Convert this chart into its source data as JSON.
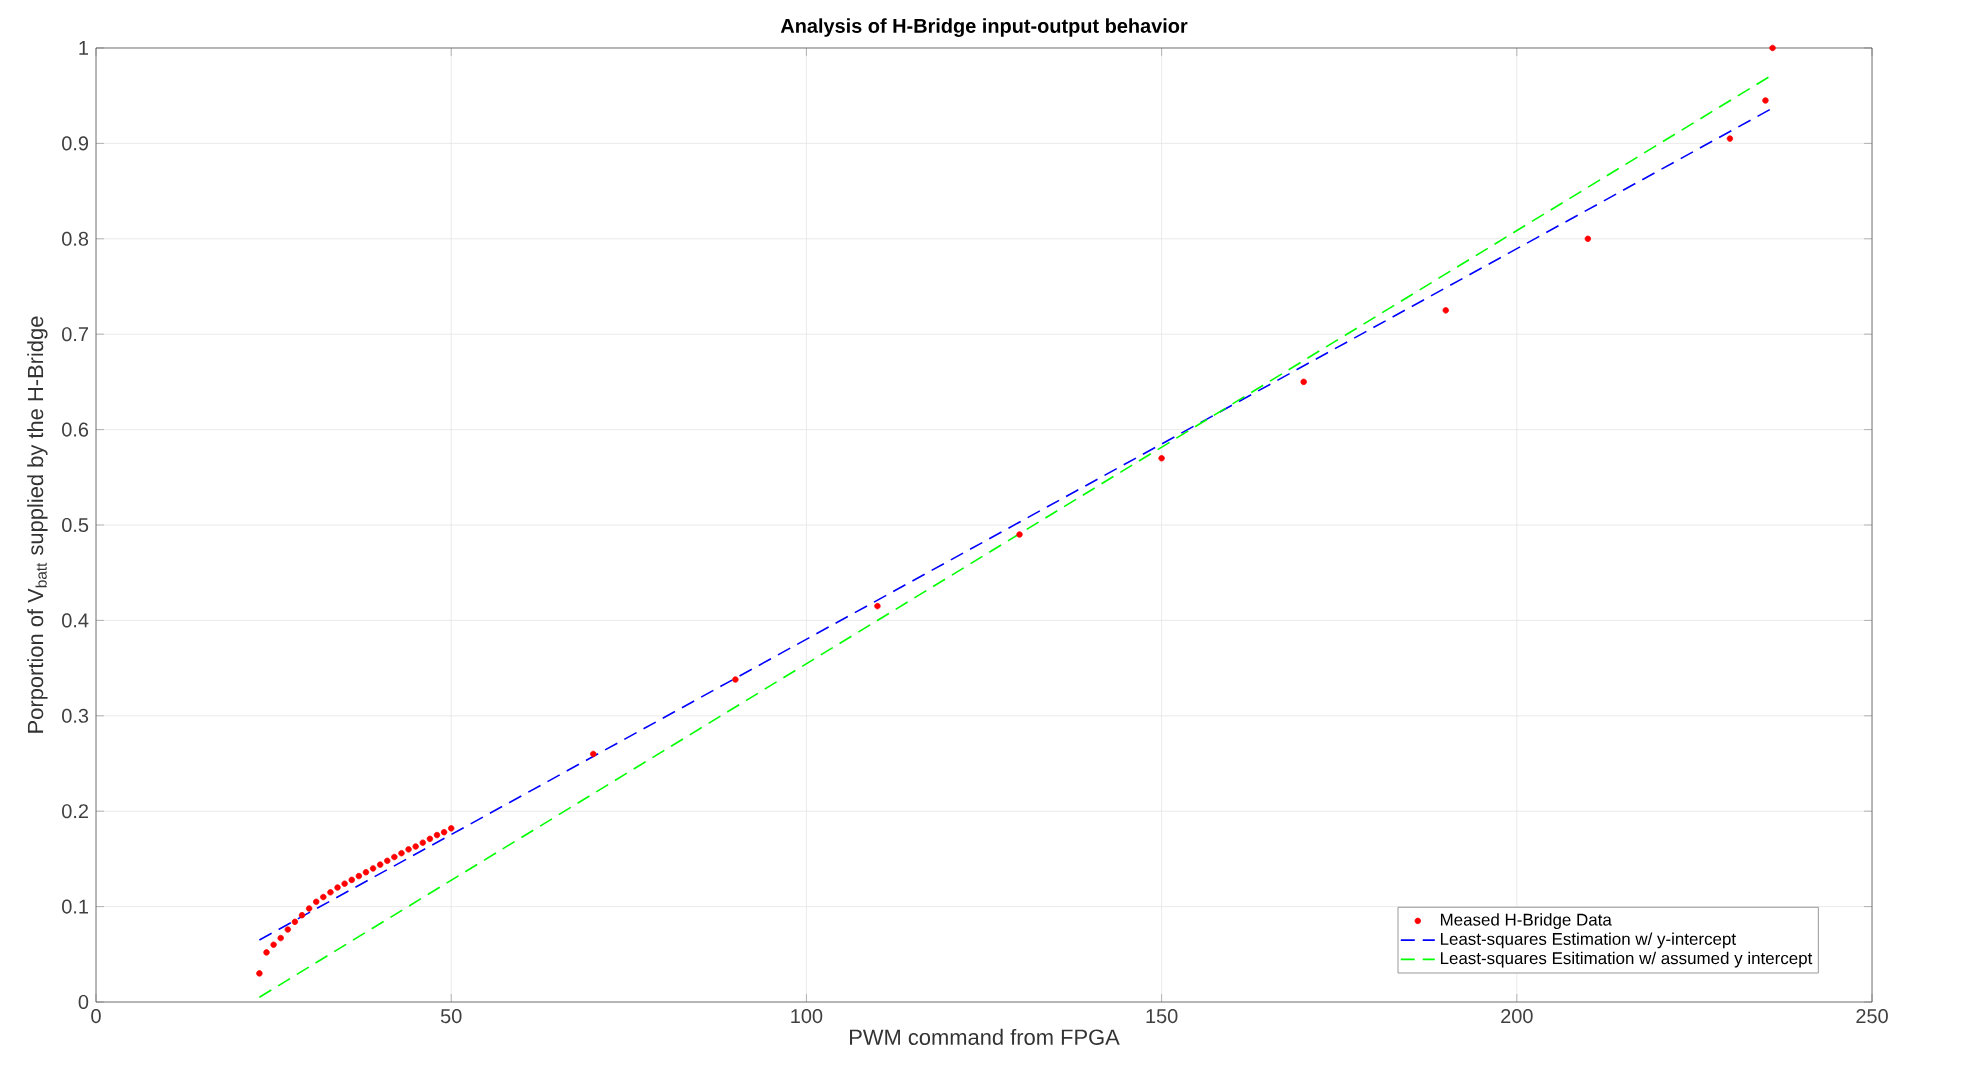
{
  "chart_data": {
    "type": "line",
    "title": "Analysis of H-Bridge input-output behavior",
    "xlabel": "PWM command from FPGA",
    "ylabel": "Porportion of V$_{batt}$ supplied by the H-Bridge",
    "xlim": [
      0,
      250
    ],
    "xticks": [
      0,
      50,
      100,
      150,
      200,
      250
    ],
    "ylim": [
      0,
      1
    ],
    "yticks": [
      0,
      0.1,
      0.2,
      0.3,
      0.4,
      0.5,
      0.6,
      0.7,
      0.8,
      0.9,
      1
    ],
    "grid": true,
    "legend": "bottom right",
    "series": [
      {
        "name": "Meased H-Bridge Data",
        "type": "scatter",
        "marker": "circle",
        "color": "#ff0000",
        "x": [
          23,
          24,
          25,
          26,
          27,
          28,
          29,
          30,
          31,
          32,
          33,
          34,
          35,
          36,
          37,
          38,
          39,
          40,
          41,
          42,
          43,
          44,
          45,
          46,
          47,
          48,
          49,
          50,
          70,
          90,
          110,
          130,
          150,
          170,
          190,
          210,
          230,
          235,
          236
        ],
        "values": [
          0.03,
          0.052,
          0.06,
          0.067,
          0.076,
          0.084,
          0.091,
          0.098,
          0.105,
          0.11,
          0.115,
          0.12,
          0.124,
          0.128,
          0.132,
          0.136,
          0.14,
          0.144,
          0.148,
          0.152,
          0.156,
          0.16,
          0.163,
          0.167,
          0.171,
          0.175,
          0.178,
          0.182,
          0.26,
          0.338,
          0.415,
          0.49,
          0.57,
          0.65,
          0.725,
          0.8,
          0.905,
          0.945,
          1.0
        ]
      },
      {
        "name": "Least-squares Estimation w/ y-intercept",
        "line_style": "dashed",
        "color": "#0000ff",
        "x": [
          23,
          236
        ],
        "values": [
          0.065,
          0.937
        ]
      },
      {
        "name": "Least-squares Esitimation w/ assumed y intercept",
        "line_style": "dashed",
        "color": "#00ff00",
        "x": [
          23,
          236
        ],
        "values": [
          0.005,
          0.972
        ]
      }
    ]
  }
}
